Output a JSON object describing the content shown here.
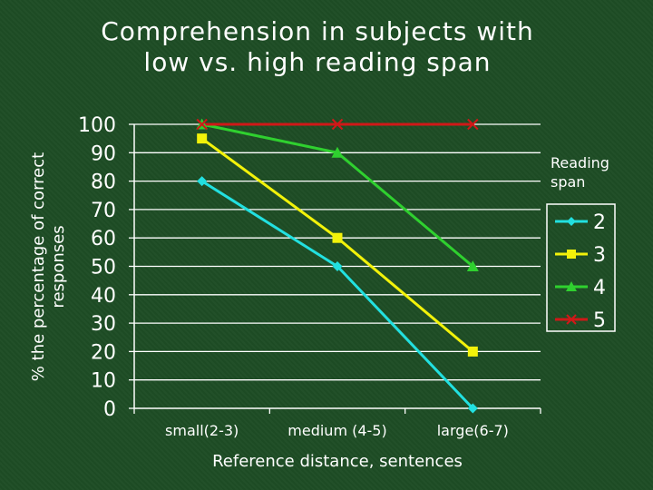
{
  "chart_data": {
    "type": "line",
    "title_lines": [
      "Comprehension in subjects with",
      "low vs. high reading span"
    ],
    "xlabel": "Reference distance, sentences",
    "ylabel_lines": [
      "% the percentage of correct",
      "responses"
    ],
    "categories": [
      "small(2-3)",
      "medium (4-5)",
      "large(6-7)"
    ],
    "yticks": [
      0,
      10,
      20,
      30,
      40,
      50,
      60,
      70,
      80,
      90,
      100
    ],
    "ylim": [
      0,
      100
    ],
    "grid": "horizontal",
    "legend_title_lines": [
      "Reading",
      "span"
    ],
    "legend_placement": "right",
    "series": [
      {
        "name": "2",
        "values": [
          80,
          50,
          0
        ],
        "color": "#22e0e0",
        "marker": "diamond"
      },
      {
        "name": "3",
        "values": [
          95,
          60,
          20
        ],
        "color": "#f2f20a",
        "marker": "square"
      },
      {
        "name": "4",
        "values": [
          100,
          90,
          50
        ],
        "color": "#2fd02f",
        "marker": "triangle"
      },
      {
        "name": "5",
        "values": [
          100,
          100,
          100
        ],
        "color": "#d01818",
        "marker": "x"
      }
    ]
  }
}
